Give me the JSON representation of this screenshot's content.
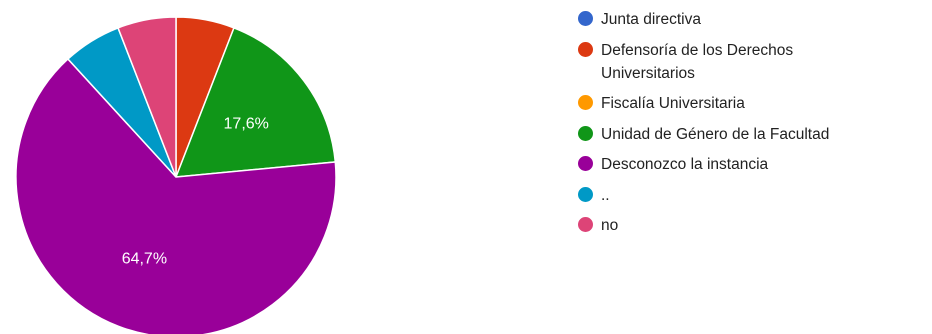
{
  "chart_data": {
    "type": "pie",
    "categories": [
      "Junta directiva",
      "Defensoría de los Derechos Universitarios",
      "Fiscalía Universitaria",
      "Unidad de Género de la Facultad",
      "Desconozco la instancia",
      "..",
      "no"
    ],
    "values": [
      0,
      5.9,
      0,
      17.6,
      64.7,
      5.9,
      5.9
    ],
    "colors": [
      "#3366cc",
      "#dc3912",
      "#ff9900",
      "#109618",
      "#990099",
      "#0099c6",
      "#dd4477"
    ],
    "data_labels": [
      "",
      "",
      "",
      "17,6%",
      "64,7%",
      "",
      ""
    ],
    "legend_position": "right"
  }
}
